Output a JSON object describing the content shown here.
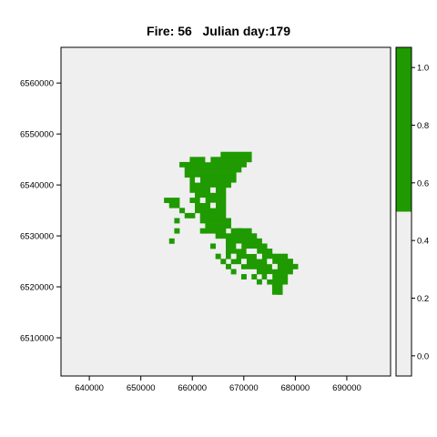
{
  "chart_data": {
    "type": "heatmap",
    "title": "Fire: 56   Julian day:179",
    "xlabel": "",
    "ylabel": "",
    "xlim": [
      634500,
      698500
    ],
    "ylim": [
      6502500,
      6567000
    ],
    "x_ticks": [
      640000,
      650000,
      660000,
      670000,
      680000,
      690000
    ],
    "y_ticks": [
      6510000,
      6520000,
      6530000,
      6540000,
      6550000,
      6560000
    ],
    "grid": false,
    "cell_size": 1000,
    "colorbar": {
      "placement": "right",
      "range": [
        -0.07,
        1.07
      ],
      "ticks": [
        0.0,
        0.2,
        0.4,
        0.6,
        0.8,
        1.0
      ],
      "tick_labels": [
        "0.0",
        "0.2",
        "0.4",
        "0.6",
        "0.8",
        "1.0"
      ],
      "breaks": [
        {
          "from": -0.07,
          "to": 0.5,
          "color": "#efefef"
        },
        {
          "from": 0.5,
          "to": 1.07,
          "color": "#1f9a00"
        }
      ]
    },
    "background_value": 0,
    "background_color": "#efefef",
    "burned_value": 1,
    "burned_color": "#1f9a00",
    "burned_rows": [
      {
        "y": 6546000,
        "x_ranges": [
          [
            667000,
            671000
          ]
        ]
      },
      {
        "y": 6545000,
        "x_ranges": [
          [
            660000,
            662000
          ],
          [
            664000,
            671000
          ]
        ]
      },
      {
        "y": 6544000,
        "x_ranges": [
          [
            659000,
            670000
          ]
        ]
      },
      {
        "y": 6543000,
        "x_ranges": [
          [
            660000,
            669000
          ]
        ]
      },
      {
        "y": 6542000,
        "x_ranges": [
          [
            660000,
            668000
          ]
        ]
      },
      {
        "y": 6541000,
        "x_ranges": [
          [
            660000,
            668000
          ]
        ]
      },
      {
        "y": 6540000,
        "x_ranges": [
          [
            660000,
            667000
          ]
        ]
      },
      {
        "y": 6539000,
        "x_ranges": [
          [
            660000,
            666000
          ]
        ]
      },
      {
        "y": 6538000,
        "x_ranges": [
          [
            661000,
            666000
          ]
        ]
      },
      {
        "y": 6537000,
        "x_ranges": [
          [
            655000,
            656000
          ],
          [
            660000,
            666000
          ]
        ]
      },
      {
        "y": 6536000,
        "x_ranges": [
          [
            656000,
            657000
          ],
          [
            661000,
            666000
          ]
        ]
      },
      {
        "y": 6535000,
        "x_ranges": [
          [
            661000,
            666000
          ]
        ]
      },
      {
        "y": 6534000,
        "x_ranges": [
          [
            662000,
            666000
          ]
        ]
      },
      {
        "y": 6533000,
        "x_ranges": [
          [
            662000,
            667000
          ]
        ]
      },
      {
        "y": 6532000,
        "x_ranges": [
          [
            663000,
            667000
          ]
        ]
      },
      {
        "y": 6531000,
        "x_ranges": [
          [
            663000,
            666000
          ],
          [
            668000,
            671000
          ]
        ]
      },
      {
        "y": 6530000,
        "x_ranges": [
          [
            666000,
            672000
          ]
        ]
      },
      {
        "y": 6529000,
        "x_ranges": [
          [
            667000,
            673000
          ]
        ]
      },
      {
        "y": 6528000,
        "x_ranges": [
          [
            667000,
            674000
          ]
        ]
      },
      {
        "y": 6527000,
        "x_ranges": [
          [
            667000,
            675000
          ]
        ]
      },
      {
        "y": 6526000,
        "x_ranges": [
          [
            667000,
            678000
          ]
        ]
      },
      {
        "y": 6525000,
        "x_ranges": [
          [
            668000,
            679000
          ]
        ]
      },
      {
        "y": 6524000,
        "x_ranges": [
          [
            670000,
            679000
          ]
        ]
      },
      {
        "y": 6523000,
        "x_ranges": [
          [
            673000,
            679000
          ]
        ]
      },
      {
        "y": 6522000,
        "x_ranges": [
          [
            674000,
            678000
          ]
        ]
      },
      {
        "y": 6521000,
        "x_ranges": [
          [
            675000,
            678000
          ]
        ]
      },
      {
        "y": 6520000,
        "x_ranges": [
          [
            676000,
            677000
          ]
        ]
      },
      {
        "y": 6519000,
        "x_ranges": [
          [
            676000,
            677000
          ]
        ]
      }
    ],
    "burned_cells": [
      [
        666000,
        6546000
      ],
      [
        658000,
        6544000
      ],
      [
        659000,
        6543000
      ],
      [
        659000,
        6542000
      ],
      [
        657000,
        6537000
      ],
      [
        658000,
        6535000
      ],
      [
        659000,
        6534000
      ],
      [
        660000,
        6534000
      ],
      [
        657000,
        6533000
      ],
      [
        662000,
        6531000
      ],
      [
        665000,
        6530000
      ],
      [
        657000,
        6531000
      ],
      [
        656000,
        6529000
      ],
      [
        664000,
        6528000
      ],
      [
        665000,
        6526000
      ],
      [
        666000,
        6525000
      ],
      [
        667000,
        6524000
      ],
      [
        668000,
        6523000
      ],
      [
        670000,
        6522000
      ],
      [
        672000,
        6522000
      ],
      [
        673000,
        6521000
      ],
      [
        679000,
        6525000
      ],
      [
        680000,
        6524000
      ],
      [
        677000,
        6519000
      ],
      [
        669000,
        6531000
      ]
    ],
    "unburned_cells": [
      [
        663000,
        6545000
      ],
      [
        661000,
        6541000
      ],
      [
        664000,
        6539000
      ],
      [
        662000,
        6537000
      ],
      [
        664000,
        6536000
      ],
      [
        669000,
        6528000
      ],
      [
        671000,
        6527000
      ],
      [
        673000,
        6526000
      ],
      [
        670000,
        6525000
      ],
      [
        675000,
        6525000
      ],
      [
        676000,
        6524000
      ],
      [
        672000,
        6527000
      ],
      [
        675000,
        6522000
      ],
      [
        668000,
        6526000
      ]
    ]
  }
}
